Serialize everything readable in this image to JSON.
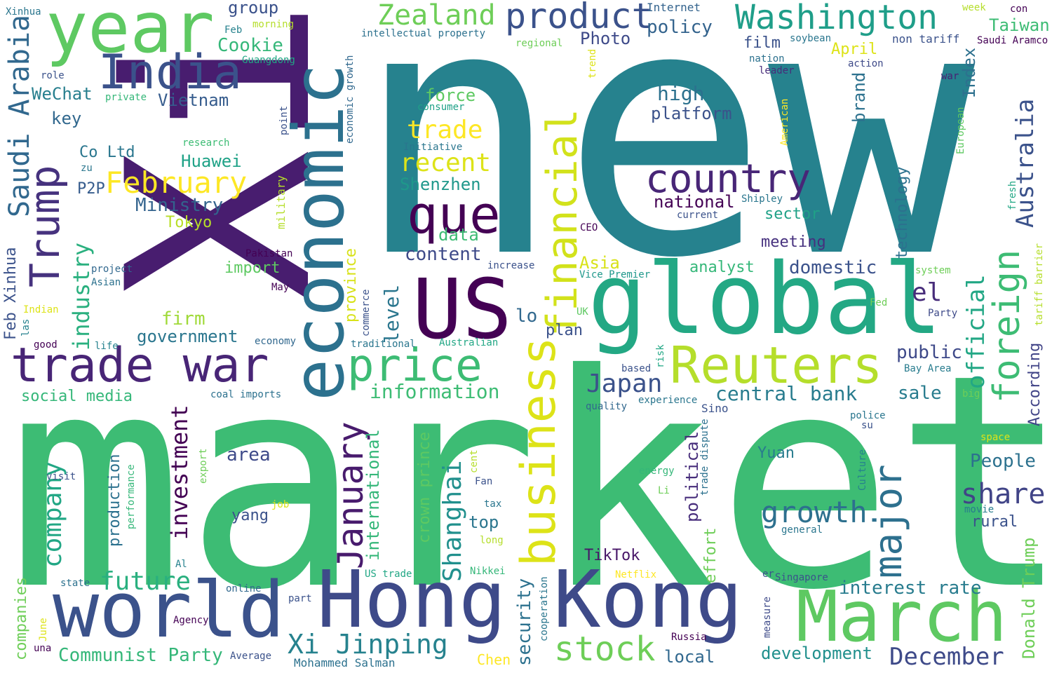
{
  "canvas": {
    "background": "#ffffff"
  },
  "palette": [
    "#440154",
    "#482878",
    "#3e4989",
    "#31688e",
    "#26828e",
    "#1f9e89",
    "#35b779",
    "#6ece58",
    "#b5de2b",
    "#fde725"
  ],
  "words": [
    {
      "text": "new",
      "color": "#26828e"
    },
    {
      "text": "market",
      "color": "#3dbc74"
    },
    {
      "text": "Xi",
      "color": "#481d6f"
    },
    {
      "text": "economic",
      "color": "#2c718e"
    },
    {
      "text": "global",
      "color": "#23a884"
    },
    {
      "text": "year",
      "color": "#5ec962"
    },
    {
      "text": "US",
      "color": "#440154"
    },
    {
      "text": "world",
      "color": "#3b528b"
    },
    {
      "text": "Hong Kong",
      "color": "#3e4a89"
    },
    {
      "text": "March",
      "color": "#5ec962"
    },
    {
      "text": "trade war",
      "color": "#482576"
    },
    {
      "text": "India",
      "color": "#3b528b"
    },
    {
      "text": "que",
      "color": "#440154"
    },
    {
      "text": "Reuters",
      "color": "#b5de2b"
    },
    {
      "text": "business",
      "color": "#dde318"
    },
    {
      "text": "financial",
      "color": "#d2e21b"
    },
    {
      "text": "price",
      "color": "#3dbc74"
    },
    {
      "text": "country",
      "color": "#482677"
    },
    {
      "text": "Trump",
      "color": "#46327e"
    },
    {
      "text": "product",
      "color": "#3b528b"
    },
    {
      "text": "Washington",
      "color": "#1f9e89"
    },
    {
      "text": "major",
      "color": "#2d708e"
    },
    {
      "text": "foreign",
      "color": "#3dbc74"
    },
    {
      "text": "Zealand",
      "color": "#6ece58"
    },
    {
      "text": "January",
      "color": "#481b6d"
    },
    {
      "text": "growth",
      "color": "#2d708e"
    },
    {
      "text": "stock",
      "color": "#6ece58"
    },
    {
      "text": "Xi Jinping",
      "color": "#26828e"
    },
    {
      "text": "Saudi Arabia",
      "color": "#31688e"
    },
    {
      "text": "February",
      "color": "#fde725"
    },
    {
      "text": "Australia",
      "color": "#3b528b"
    },
    {
      "text": "Shanghai",
      "color": "#21908d"
    },
    {
      "text": "share",
      "color": "#414487"
    },
    {
      "text": "December",
      "color": "#3e4a89"
    },
    {
      "text": "official",
      "color": "#22a785"
    },
    {
      "text": "Japan",
      "color": "#3b528b"
    },
    {
      "text": "future",
      "color": "#2ab07f"
    },
    {
      "text": "company",
      "color": "#22a785"
    },
    {
      "text": "investment",
      "color": "#440154"
    },
    {
      "text": "trade",
      "color": "#fde725"
    },
    {
      "text": "recent",
      "color": "#dde318"
    },
    {
      "text": "central bank",
      "color": "#287c8e"
    },
    {
      "text": "information",
      "color": "#3dbc74"
    },
    {
      "text": "Donald Trump",
      "color": "#6ece58"
    },
    {
      "text": "Ministry",
      "color": "#33638d"
    },
    {
      "text": "industry",
      "color": "#2ab07f"
    },
    {
      "text": "Communist Party",
      "color": "#35b779"
    },
    {
      "text": "el",
      "color": "#472c7a"
    },
    {
      "text": "level",
      "color": "#2a768e"
    },
    {
      "text": "content",
      "color": "#3e4a89"
    },
    {
      "text": "security",
      "color": "#2c718e"
    },
    {
      "text": "domestic",
      "color": "#3b528b"
    },
    {
      "text": "high",
      "color": "#2c718e"
    },
    {
      "text": "Huawei",
      "color": "#1fa287"
    },
    {
      "text": "Cookie",
      "color": "#35b779"
    },
    {
      "text": "policy",
      "color": "#33638d"
    },
    {
      "text": "Photo",
      "color": "#3e4a89"
    },
    {
      "text": "Shenzhen",
      "color": "#1f988b"
    },
    {
      "text": "platform",
      "color": "#3b528b"
    },
    {
      "text": "national",
      "color": "#440154"
    },
    {
      "text": "Taiwan",
      "color": "#3dbc74"
    },
    {
      "text": "government",
      "color": "#2a768e"
    },
    {
      "text": "WeChat",
      "color": "#277f8e"
    },
    {
      "text": "Vietnam",
      "color": "#365c8d"
    },
    {
      "text": "key",
      "color": "#31688e"
    },
    {
      "text": "Index",
      "color": "#2d708e"
    },
    {
      "text": "meeting",
      "color": "#46307e"
    },
    {
      "text": "sector",
      "color": "#1fa187"
    },
    {
      "text": "interest rate",
      "color": "#287c8e"
    },
    {
      "text": "People",
      "color": "#2c718e"
    },
    {
      "text": "public",
      "color": "#3e4989"
    },
    {
      "text": "development",
      "color": "#21908d"
    },
    {
      "text": "Yuan",
      "color": "#287c8e"
    },
    {
      "text": "According",
      "color": "#414487"
    },
    {
      "text": "area",
      "color": "#3e4a89"
    },
    {
      "text": "brand",
      "color": "#2c718e"
    },
    {
      "text": "analyst",
      "color": "#35b779"
    },
    {
      "text": "film",
      "color": "#3b528b"
    },
    {
      "text": "technology",
      "color": "#2c718e"
    },
    {
      "text": "firm",
      "color": "#a0da39"
    },
    {
      "text": "political",
      "color": "#472d7b"
    },
    {
      "text": "sale",
      "color": "#287c8e"
    },
    {
      "text": "lo",
      "color": "#31688e"
    },
    {
      "text": "plan",
      "color": "#3b528b"
    },
    {
      "text": "data",
      "color": "#3dbc74"
    },
    {
      "text": "force",
      "color": "#5ec962"
    },
    {
      "text": "group",
      "color": "#3b528b"
    },
    {
      "text": "TikTok",
      "color": "#481668"
    },
    {
      "text": "top",
      "color": "#2a768e"
    },
    {
      "text": "local",
      "color": "#31688e"
    },
    {
      "text": "rural",
      "color": "#3b528b"
    },
    {
      "text": "Asia",
      "color": "#d8e219"
    },
    {
      "text": "production",
      "color": "#2c718e"
    },
    {
      "text": "international",
      "color": "#35b779"
    },
    {
      "text": "crown prince",
      "color": "#5ec962"
    },
    {
      "text": "import",
      "color": "#5ec962"
    },
    {
      "text": "yang",
      "color": "#3b528b"
    },
    {
      "text": "province",
      "color": "#d8e219"
    },
    {
      "text": "April",
      "color": "#dde318"
    },
    {
      "text": "Tokyo",
      "color": "#b8de29"
    },
    {
      "text": "effort",
      "color": "#6ece58"
    },
    {
      "text": "social media",
      "color": "#35b779"
    },
    {
      "text": "Co Ltd",
      "color": "#2a768e"
    },
    {
      "text": "P2P",
      "color": "#365c8d"
    },
    {
      "text": "Feb Xinhua",
      "color": "#3b528b"
    },
    {
      "text": "companies",
      "color": "#6ece58"
    },
    {
      "text": "Mohammed Salman",
      "color": "#2c718e"
    },
    {
      "text": "Chen",
      "color": "#fde725"
    },
    {
      "text": "Internet",
      "color": "#33638d"
    },
    {
      "text": "non tariff",
      "color": "#3b528b"
    },
    {
      "text": "Saudi Aramco",
      "color": "#440154"
    },
    {
      "text": "Xinhua",
      "color": "#2a768e"
    },
    {
      "text": "con",
      "color": "#440154"
    },
    {
      "text": "week",
      "color": "#b5de2b"
    },
    {
      "text": "soybean",
      "color": "#2a768e"
    },
    {
      "text": "nation",
      "color": "#2c718e"
    },
    {
      "text": "leader",
      "color": "#472c7a"
    },
    {
      "text": "action",
      "color": "#3e4a89"
    },
    {
      "text": "war",
      "color": "#482173"
    },
    {
      "text": "regional",
      "color": "#6ece58"
    },
    {
      "text": "trend",
      "color": "#dde318"
    },
    {
      "text": "consumer",
      "color": "#1fa187"
    },
    {
      "text": "Initiative",
      "color": "#2a768e"
    },
    {
      "text": "intellectual property",
      "color": "#2c718e"
    },
    {
      "text": "economic growth",
      "color": "#31688e"
    },
    {
      "text": "research",
      "color": "#3dbc74"
    },
    {
      "text": "point",
      "color": "#3b528b"
    },
    {
      "text": "morning",
      "color": "#b5de2b"
    },
    {
      "text": "Guangdong",
      "color": "#22a785"
    },
    {
      "text": "Feb",
      "color": "#26828e"
    },
    {
      "text": "role",
      "color": "#3b528b"
    },
    {
      "text": "private",
      "color": "#35b779"
    },
    {
      "text": "zu",
      "color": "#2a768e"
    },
    {
      "text": "American",
      "color": "#fde725"
    },
    {
      "text": "European",
      "color": "#5ec962"
    },
    {
      "text": "Shipley",
      "color": "#2a768e"
    },
    {
      "text": "current",
      "color": "#3b528b"
    },
    {
      "text": "CEO",
      "color": "#440154"
    },
    {
      "text": "fresh",
      "color": "#22a785"
    },
    {
      "text": "tariff barrier",
      "color": "#b5de2b"
    },
    {
      "text": "system",
      "color": "#6ece58"
    },
    {
      "text": "military",
      "color": "#b5de2b"
    },
    {
      "text": "Pakistan",
      "color": "#440154"
    },
    {
      "text": "increase",
      "color": "#3b528b"
    },
    {
      "text": "Vice Premier",
      "color": "#1f988b"
    },
    {
      "text": "project",
      "color": "#31688e"
    },
    {
      "text": "Asian",
      "color": "#2c718e"
    },
    {
      "text": "May",
      "color": "#440154"
    },
    {
      "text": "Indian",
      "color": "#dde318"
    },
    {
      "text": "commerce",
      "color": "#3b528b"
    },
    {
      "text": "UK",
      "color": "#5ec962"
    },
    {
      "text": "Fed",
      "color": "#6ece58"
    },
    {
      "text": "Party",
      "color": "#3e4a89"
    },
    {
      "text": "las",
      "color": "#26828e"
    },
    {
      "text": "good",
      "color": "#440154"
    },
    {
      "text": "life",
      "color": "#26828e"
    },
    {
      "text": "economy",
      "color": "#31688e"
    },
    {
      "text": "traditional",
      "color": "#2a768e"
    },
    {
      "text": "Australian",
      "color": "#22a785"
    },
    {
      "text": "based",
      "color": "#3b528b"
    },
    {
      "text": "risk",
      "color": "#22a785"
    },
    {
      "text": "Bay Area",
      "color": "#287c8e"
    },
    {
      "text": "coal imports",
      "color": "#2c718e"
    },
    {
      "text": "quality",
      "color": "#31688e"
    },
    {
      "text": "experience",
      "color": "#2a768e"
    },
    {
      "text": "big",
      "color": "#6ece58"
    },
    {
      "text": "police",
      "color": "#2a768e"
    },
    {
      "text": "su",
      "color": "#3b528b"
    },
    {
      "text": "trade dispute",
      "color": "#2c718e"
    },
    {
      "text": "Sino",
      "color": "#3b528b"
    },
    {
      "text": "space",
      "color": "#dde318"
    },
    {
      "text": "Culture",
      "color": "#26828e"
    },
    {
      "text": "visit",
      "color": "#3b528b"
    },
    {
      "text": "export",
      "color": "#6ece58"
    },
    {
      "text": "performance",
      "color": "#35b779"
    },
    {
      "text": "cent",
      "color": "#b5de2b"
    },
    {
      "text": "Fan",
      "color": "#3b528b"
    },
    {
      "text": "energy",
      "color": "#35b779"
    },
    {
      "text": "Li",
      "color": "#6ece58"
    },
    {
      "text": "tax",
      "color": "#2a768e"
    },
    {
      "text": "job",
      "color": "#dde318"
    },
    {
      "text": "long",
      "color": "#b5de2b"
    },
    {
      "text": "movie",
      "color": "#287c8e"
    },
    {
      "text": "general",
      "color": "#2a768e"
    },
    {
      "text": "Al",
      "color": "#26828e"
    },
    {
      "text": "state",
      "color": "#2c718e"
    },
    {
      "text": "online",
      "color": "#31688e"
    },
    {
      "text": "part",
      "color": "#3b528b"
    },
    {
      "text": "Agency",
      "color": "#440154"
    },
    {
      "text": "June",
      "color": "#dde318"
    },
    {
      "text": "una",
      "color": "#440154"
    },
    {
      "text": "Average",
      "color": "#3b528b"
    },
    {
      "text": "US trade",
      "color": "#22a785"
    },
    {
      "text": "Nikkei",
      "color": "#35b779"
    },
    {
      "text": "Netflix",
      "color": "#fde725"
    },
    {
      "text": "cooperation",
      "color": "#2a768e"
    },
    {
      "text": "er",
      "color": "#3b528b"
    },
    {
      "text": "Singapore",
      "color": "#3b528b"
    },
    {
      "text": "measure",
      "color": "#3e4a89"
    },
    {
      "text": "Russia",
      "color": "#440154"
    }
  ]
}
